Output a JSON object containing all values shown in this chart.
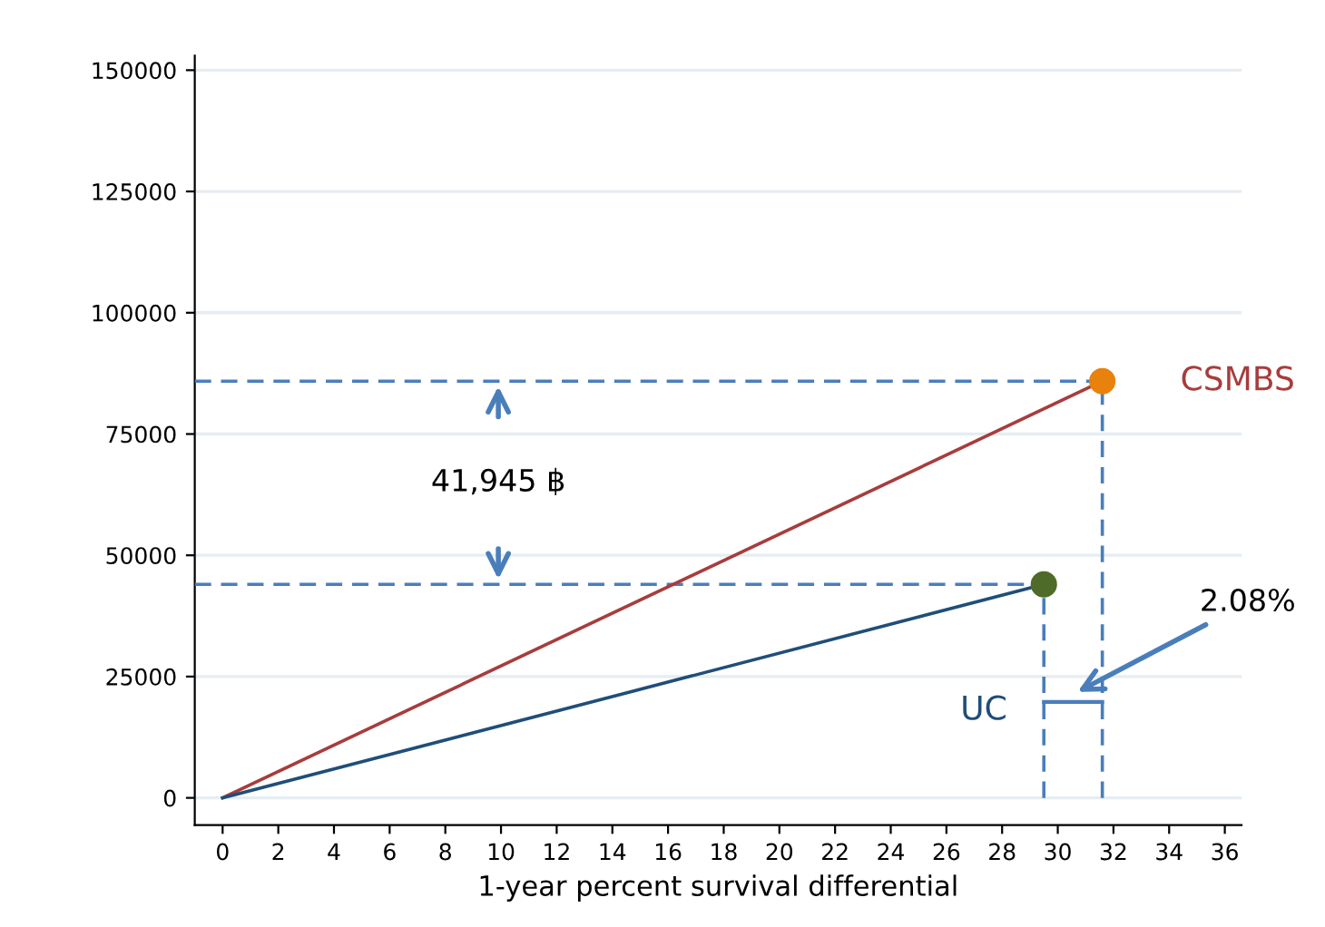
{
  "chart_data": {
    "type": "line",
    "xlabel": "1-year percent survival differential",
    "xlim": [
      -1,
      36.6
    ],
    "xticks": [
      0,
      2,
      4,
      6,
      8,
      10,
      12,
      14,
      16,
      18,
      20,
      22,
      24,
      26,
      28,
      30,
      32,
      34,
      36
    ],
    "ylim": [
      -5600,
      153000
    ],
    "yticks": [
      0,
      25000,
      50000,
      75000,
      100000,
      125000,
      150000
    ],
    "grid": "y",
    "series": [
      {
        "name": "CSMBS",
        "color": "#a83c3c",
        "x": [
          0,
          31.6
        ],
        "values": [
          0,
          85900
        ]
      },
      {
        "name": "UC",
        "color": "#1f4e79",
        "x": [
          0,
          29.5
        ],
        "values": [
          0,
          44000
        ]
      },
      {
        "type": "scatter",
        "color": "#e8820c",
        "x": [
          31.6
        ],
        "values": [
          85900
        ]
      },
      {
        "type": "scatter",
        "color": "#4f6b2a",
        "x": [
          29.5
        ],
        "values": [
          44000
        ]
      }
    ],
    "ref_lines": [
      {
        "axis": "y",
        "value": 85900,
        "color": "#4a7ebb",
        "line_style": "dashed"
      },
      {
        "axis": "y",
        "value": 44000,
        "color": "#4a7ebb",
        "line_style": "dashed"
      },
      {
        "axis": "x",
        "value": 31.6,
        "color": "#4a7ebb",
        "line_style": "dashed"
      },
      {
        "axis": "x",
        "value": 29.5,
        "color": "#4a7ebb",
        "line_style": "dashed"
      }
    ],
    "annotations": [
      "41,945 ฿",
      "2.08%"
    ]
  }
}
